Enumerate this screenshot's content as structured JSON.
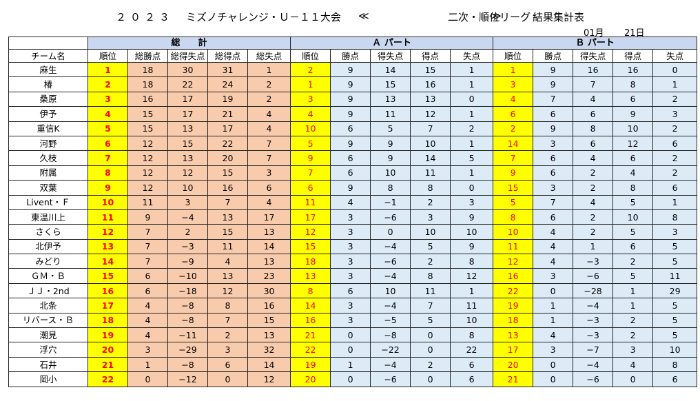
{
  "header": {
    "year": "２０２３",
    "event": "ミズノチャレンジ・Ｕ－１１大会",
    "open_mark": "≪",
    "stage": "二次・順位リーグ",
    "close_mark": "≫",
    "doc": "結果集計表",
    "month": "01月",
    "day": "21日"
  },
  "groups": {
    "total": "総　　計",
    "a": "Ａ パート",
    "b": "Ｂ パート"
  },
  "columns": {
    "team": "チーム名",
    "total": [
      "順位",
      "総勝点",
      "総得失点",
      "総得点",
      "総失点"
    ],
    "a": [
      "順位",
      "勝点",
      "得失点",
      "得点",
      "失点"
    ],
    "b": [
      "順位",
      "勝点",
      "得失点",
      "得点",
      "失点"
    ]
  },
  "rows": [
    {
      "team": "麻生",
      "t": [
        "1",
        "18",
        "30",
        "31",
        "1"
      ],
      "a": [
        "2",
        "9",
        "14",
        "15",
        "1"
      ],
      "b": [
        "1",
        "9",
        "16",
        "16",
        "0"
      ]
    },
    {
      "team": "椿",
      "t": [
        "2",
        "18",
        "22",
        "24",
        "2"
      ],
      "a": [
        "1",
        "9",
        "15",
        "16",
        "1"
      ],
      "b": [
        "3",
        "9",
        "7",
        "8",
        "1"
      ]
    },
    {
      "team": "桑原",
      "t": [
        "3",
        "16",
        "17",
        "19",
        "2"
      ],
      "a": [
        "3",
        "9",
        "13",
        "13",
        "0"
      ],
      "b": [
        "4",
        "7",
        "4",
        "6",
        "2"
      ]
    },
    {
      "team": "伊予",
      "t": [
        "4",
        "15",
        "17",
        "21",
        "4"
      ],
      "a": [
        "4",
        "9",
        "11",
        "12",
        "1"
      ],
      "b": [
        "6",
        "6",
        "6",
        "9",
        "3"
      ]
    },
    {
      "team": "重信K",
      "t": [
        "5",
        "15",
        "13",
        "17",
        "4"
      ],
      "a": [
        "10",
        "6",
        "5",
        "7",
        "2"
      ],
      "b": [
        "2",
        "9",
        "8",
        "10",
        "2"
      ]
    },
    {
      "team": "河野",
      "t": [
        "6",
        "12",
        "15",
        "22",
        "7"
      ],
      "a": [
        "5",
        "9",
        "9",
        "10",
        "1"
      ],
      "b": [
        "14",
        "3",
        "6",
        "12",
        "6"
      ]
    },
    {
      "team": "久枝",
      "t": [
        "7",
        "12",
        "13",
        "20",
        "7"
      ],
      "a": [
        "9",
        "6",
        "9",
        "14",
        "5"
      ],
      "b": [
        "7",
        "6",
        "4",
        "6",
        "2"
      ]
    },
    {
      "team": "附属",
      "t": [
        "8",
        "12",
        "12",
        "15",
        "3"
      ],
      "a": [
        "7",
        "6",
        "10",
        "11",
        "1"
      ],
      "b": [
        "9",
        "6",
        "2",
        "4",
        "2"
      ]
    },
    {
      "team": "双葉",
      "t": [
        "9",
        "12",
        "10",
        "16",
        "6"
      ],
      "a": [
        "6",
        "9",
        "8",
        "8",
        "0"
      ],
      "b": [
        "15",
        "3",
        "2",
        "8",
        "6"
      ]
    },
    {
      "team": "Livent・Ｆ",
      "t": [
        "10",
        "11",
        "3",
        "7",
        "4"
      ],
      "a": [
        "11",
        "4",
        "−1",
        "2",
        "3"
      ],
      "b": [
        "5",
        "7",
        "4",
        "5",
        "1"
      ]
    },
    {
      "team": "東温川上",
      "t": [
        "11",
        "9",
        "−4",
        "13",
        "17"
      ],
      "a": [
        "17",
        "3",
        "−6",
        "3",
        "9"
      ],
      "b": [
        "8",
        "6",
        "2",
        "10",
        "8"
      ]
    },
    {
      "team": "さくら",
      "t": [
        "12",
        "7",
        "2",
        "15",
        "13"
      ],
      "a": [
        "12",
        "3",
        "0",
        "10",
        "10"
      ],
      "b": [
        "10",
        "4",
        "2",
        "5",
        "3"
      ]
    },
    {
      "team": "北伊予",
      "t": [
        "13",
        "7",
        "−3",
        "11",
        "14"
      ],
      "a": [
        "15",
        "3",
        "−4",
        "5",
        "9"
      ],
      "b": [
        "11",
        "4",
        "1",
        "6",
        "5"
      ]
    },
    {
      "team": "みどり",
      "t": [
        "14",
        "7",
        "−9",
        "4",
        "13"
      ],
      "a": [
        "18",
        "3",
        "−6",
        "2",
        "8"
      ],
      "b": [
        "12",
        "4",
        "−3",
        "2",
        "5"
      ]
    },
    {
      "team": "ＧＭ・Ｂ",
      "t": [
        "15",
        "6",
        "−10",
        "13",
        "23"
      ],
      "a": [
        "13",
        "3",
        "−4",
        "8",
        "12"
      ],
      "b": [
        "16",
        "3",
        "−6",
        "5",
        "11"
      ]
    },
    {
      "team": "ＪＪ・2nd",
      "t": [
        "16",
        "6",
        "−18",
        "12",
        "30"
      ],
      "a": [
        "8",
        "6",
        "10",
        "11",
        "1"
      ],
      "b": [
        "22",
        "0",
        "−28",
        "1",
        "29"
      ]
    },
    {
      "team": "北条",
      "t": [
        "17",
        "4",
        "−8",
        "8",
        "16"
      ],
      "a": [
        "14",
        "3",
        "−4",
        "7",
        "11"
      ],
      "b": [
        "19",
        "1",
        "−4",
        "1",
        "5"
      ]
    },
    {
      "team": "リバース・Ｂ",
      "t": [
        "18",
        "4",
        "−8",
        "7",
        "15"
      ],
      "a": [
        "16",
        "3",
        "−5",
        "5",
        "10"
      ],
      "b": [
        "18",
        "1",
        "−3",
        "2",
        "5"
      ]
    },
    {
      "team": "潮見",
      "t": [
        "19",
        "4",
        "−11",
        "2",
        "13"
      ],
      "a": [
        "21",
        "0",
        "−8",
        "0",
        "8"
      ],
      "b": [
        "13",
        "4",
        "−3",
        "2",
        "5"
      ]
    },
    {
      "team": "浮穴",
      "t": [
        "20",
        "3",
        "−29",
        "3",
        "32"
      ],
      "a": [
        "22",
        "0",
        "−22",
        "0",
        "22"
      ],
      "b": [
        "17",
        "3",
        "−7",
        "3",
        "10"
      ]
    },
    {
      "team": "石井",
      "t": [
        "21",
        "1",
        "−8",
        "6",
        "14"
      ],
      "a": [
        "19",
        "1",
        "−4",
        "2",
        "6"
      ],
      "b": [
        "20",
        "0",
        "−4",
        "4",
        "8"
      ]
    },
    {
      "team": "岡小",
      "t": [
        "22",
        "0",
        "−12",
        "0",
        "12"
      ],
      "a": [
        "20",
        "0",
        "−6",
        "0",
        "6"
      ],
      "b": [
        "21",
        "0",
        "−6",
        "0",
        "6"
      ]
    }
  ]
}
